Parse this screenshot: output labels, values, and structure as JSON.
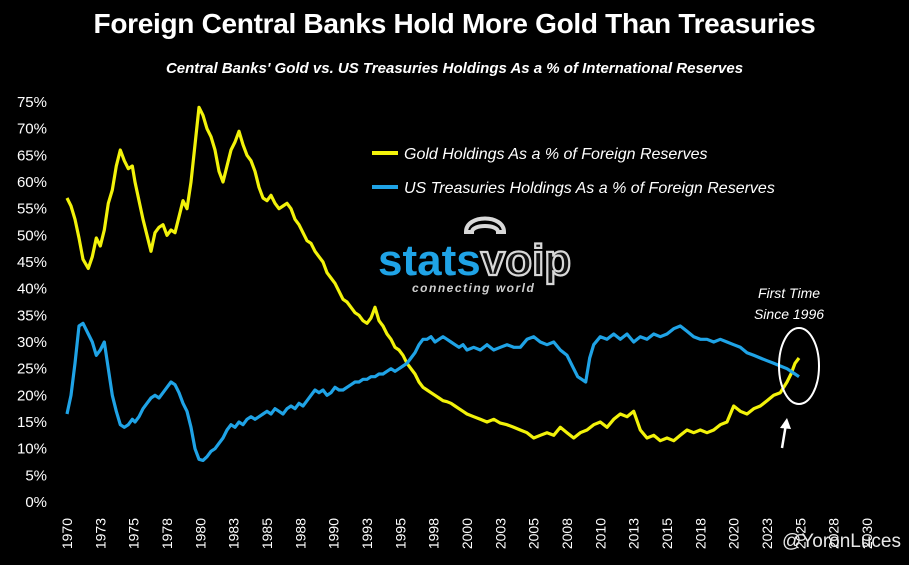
{
  "chart_data": {
    "type": "line",
    "title": "Foreign Central Banks Hold More Gold Than Treasuries",
    "subtitle": "Central Banks' Gold vs. US Treasuries Holdings As a % of International Reserves",
    "xlim": [
      1970,
      2030
    ],
    "ylim": [
      0,
      75
    ],
    "x_tick_labels": [
      "1970",
      "1973",
      "1975",
      "1978",
      "1980",
      "1983",
      "1985",
      "1988",
      "1990",
      "1993",
      "1995",
      "1998",
      "2000",
      "2003",
      "2005",
      "2008",
      "2010",
      "2013",
      "2015",
      "2018",
      "2020",
      "2023",
      "2025",
      "2028",
      "2030"
    ],
    "x_tick_values": [
      1970,
      1972.5,
      1975,
      1977.5,
      1980,
      1982.5,
      1985,
      1987.5,
      1990,
      1992.5,
      1995,
      1997.5,
      2000,
      2002.5,
      2005,
      2007.5,
      2010,
      2012.5,
      2015,
      2017.5,
      2020,
      2022.5,
      2025,
      2027.5,
      2030
    ],
    "y_tick_labels": [
      "0%",
      "5%",
      "10%",
      "15%",
      "20%",
      "25%",
      "30%",
      "35%",
      "40%",
      "45%",
      "50%",
      "55%",
      "60%",
      "65%",
      "70%",
      "75%"
    ],
    "y_tick_values": [
      0,
      5,
      10,
      15,
      20,
      25,
      30,
      35,
      40,
      45,
      50,
      55,
      60,
      65,
      70,
      75
    ],
    "grid": false,
    "legend_position": "top-right",
    "series": [
      {
        "name": "Gold Holdings As a % of Foreign Reserves",
        "color": "#f2f20a",
        "x": [
          1970.0,
          1970.3,
          1970.6,
          1970.9,
          1971.2,
          1971.6,
          1971.9,
          1972.2,
          1972.5,
          1972.8,
          1973.1,
          1973.4,
          1973.7,
          1974.0,
          1974.3,
          1974.6,
          1974.9,
          1975.1,
          1975.4,
          1975.7,
          1976.0,
          1976.3,
          1976.6,
          1976.9,
          1977.2,
          1977.5,
          1977.8,
          1978.1,
          1978.4,
          1978.7,
          1979.0,
          1979.3,
          1979.6,
          1979.9,
          1980.2,
          1980.5,
          1980.8,
          1981.1,
          1981.4,
          1981.7,
          1982.0,
          1982.3,
          1982.6,
          1982.9,
          1983.2,
          1983.5,
          1983.8,
          1984.1,
          1984.4,
          1984.7,
          1985.0,
          1985.3,
          1985.6,
          1985.9,
          1986.2,
          1986.5,
          1986.8,
          1987.1,
          1987.4,
          1987.7,
          1988.0,
          1988.3,
          1988.6,
          1988.9,
          1989.2,
          1989.5,
          1989.8,
          1990.1,
          1990.4,
          1990.7,
          1991.0,
          1991.3,
          1991.6,
          1991.9,
          1992.2,
          1992.5,
          1992.8,
          1993.1,
          1993.4,
          1993.7,
          1994.0,
          1994.3,
          1994.6,
          1994.9,
          1995.2,
          1995.5,
          1995.8,
          1996.1,
          1996.4,
          1996.7,
          1997.0,
          1997.3,
          1997.6,
          1997.9,
          1998.2,
          1998.5,
          1998.8,
          1999.1,
          1999.4,
          1999.7,
          2000.0,
          2000.5,
          2001.0,
          2001.5,
          2002.0,
          2002.5,
          2003.0,
          2003.5,
          2004.0,
          2004.5,
          2005.0,
          2005.5,
          2006.0,
          2006.5,
          2007.0,
          2007.5,
          2008.0,
          2008.5,
          2009.0,
          2009.5,
          2010.0,
          2010.5,
          2011.0,
          2011.5,
          2012.0,
          2012.5,
          2013.0,
          2013.5,
          2014.0,
          2014.5,
          2015.0,
          2015.5,
          2016.0,
          2016.5,
          2017.0,
          2017.5,
          2018.0,
          2018.5,
          2019.0,
          2019.5,
          2020.0,
          2020.5,
          2021.0,
          2021.5,
          2022.0,
          2022.5,
          2023.0,
          2023.5,
          2024.0,
          2024.3,
          2024.6,
          2024.9
        ],
        "y": [
          57.0,
          55.5,
          53.0,
          49.5,
          45.5,
          43.8,
          46.0,
          49.5,
          48.0,
          51.0,
          56.0,
          58.5,
          63.0,
          66.0,
          64.0,
          62.5,
          63.0,
          60.0,
          56.5,
          53.0,
          50.0,
          47.0,
          50.5,
          51.5,
          52.0,
          50.0,
          51.0,
          50.5,
          53.5,
          56.5,
          55.0,
          60.0,
          67.0,
          74.0,
          72.5,
          70.0,
          68.5,
          66.0,
          62.0,
          60.0,
          63.0,
          66.0,
          67.5,
          69.5,
          67.0,
          65.0,
          64.0,
          62.0,
          59.0,
          57.0,
          56.5,
          57.5,
          56.0,
          55.0,
          55.5,
          56.0,
          55.0,
          53.0,
          52.0,
          50.5,
          49.0,
          48.5,
          47.0,
          46.0,
          45.0,
          43.0,
          42.0,
          41.0,
          39.5,
          38.0,
          37.5,
          36.5,
          35.5,
          35.0,
          34.0,
          33.5,
          34.5,
          36.5,
          34.0,
          33.0,
          31.5,
          30.5,
          29.0,
          28.5,
          27.5,
          26.0,
          25.0,
          24.0,
          22.5,
          21.5,
          21.0,
          20.5,
          20.0,
          19.5,
          19.0,
          18.8,
          18.5,
          18.0,
          17.5,
          17.0,
          16.5,
          16.0,
          15.5,
          15.0,
          15.5,
          14.8,
          14.5,
          14.0,
          13.5,
          13.0,
          12.0,
          12.5,
          13.0,
          12.5,
          14.0,
          13.0,
          12.0,
          13.0,
          13.5,
          14.5,
          15.0,
          14.0,
          15.5,
          16.5,
          16.0,
          17.0,
          13.5,
          12.0,
          12.5,
          11.5,
          12.0,
          11.5,
          12.5,
          13.5,
          13.0,
          13.5,
          13.0,
          13.5,
          14.5,
          15.0,
          18.0,
          17.0,
          16.5,
          17.5,
          18.0,
          19.0,
          20.0,
          20.5,
          22.5,
          24.0,
          26.0,
          27.0
        ]
      },
      {
        "name": "US Treasuries Holdings As a % of Foreign Reserves",
        "color": "#1fa3e6",
        "x": [
          1970.0,
          1970.3,
          1970.6,
          1970.9,
          1971.2,
          1971.6,
          1971.9,
          1972.2,
          1972.5,
          1972.8,
          1973.1,
          1973.4,
          1973.7,
          1974.0,
          1974.3,
          1974.6,
          1974.9,
          1975.1,
          1975.4,
          1975.7,
          1976.0,
          1976.3,
          1976.6,
          1976.9,
          1977.2,
          1977.5,
          1977.8,
          1978.1,
          1978.4,
          1978.7,
          1979.0,
          1979.3,
          1979.6,
          1979.9,
          1980.2,
          1980.5,
          1980.8,
          1981.1,
          1981.4,
          1981.7,
          1982.0,
          1982.3,
          1982.6,
          1982.9,
          1983.2,
          1983.5,
          1983.8,
          1984.1,
          1984.4,
          1984.7,
          1985.0,
          1985.3,
          1985.6,
          1985.9,
          1986.2,
          1986.5,
          1986.8,
          1987.1,
          1987.4,
          1987.7,
          1988.0,
          1988.3,
          1988.6,
          1988.9,
          1989.2,
          1989.5,
          1989.8,
          1990.1,
          1990.4,
          1990.7,
          1991.0,
          1991.3,
          1991.6,
          1991.9,
          1992.2,
          1992.5,
          1992.8,
          1993.1,
          1993.4,
          1993.7,
          1994.0,
          1994.3,
          1994.6,
          1994.9,
          1995.2,
          1995.5,
          1995.8,
          1996.1,
          1996.4,
          1996.7,
          1997.0,
          1997.3,
          1997.6,
          1997.9,
          1998.2,
          1998.5,
          1998.8,
          1999.1,
          1999.4,
          1999.7,
          2000.0,
          2000.5,
          2001.0,
          2001.5,
          2002.0,
          2002.5,
          2003.0,
          2003.5,
          2004.0,
          2004.5,
          2005.0,
          2005.5,
          2006.0,
          2006.5,
          2007.0,
          2007.5,
          2008.0,
          2008.3,
          2008.6,
          2008.9,
          2009.2,
          2009.5,
          2010.0,
          2010.5,
          2011.0,
          2011.5,
          2012.0,
          2012.5,
          2013.0,
          2013.5,
          2014.0,
          2014.5,
          2015.0,
          2015.5,
          2016.0,
          2016.5,
          2017.0,
          2017.5,
          2018.0,
          2018.5,
          2019.0,
          2019.5,
          2020.0,
          2020.5,
          2021.0,
          2021.5,
          2022.0,
          2022.5,
          2023.0,
          2023.5,
          2024.0,
          2024.3,
          2024.6,
          2024.9
        ],
        "y": [
          16.5,
          20.0,
          26.0,
          33.0,
          33.5,
          31.5,
          30.0,
          27.5,
          28.5,
          30.0,
          25.0,
          20.0,
          17.0,
          14.5,
          14.0,
          14.5,
          15.5,
          15.0,
          16.0,
          17.5,
          18.5,
          19.5,
          20.0,
          19.5,
          20.5,
          21.5,
          22.5,
          22.0,
          20.5,
          18.5,
          17.0,
          14.0,
          10.0,
          8.0,
          7.8,
          8.5,
          9.5,
          10.0,
          11.0,
          12.0,
          13.5,
          14.5,
          14.0,
          15.0,
          14.5,
          15.5,
          16.0,
          15.5,
          16.0,
          16.5,
          17.0,
          16.5,
          17.5,
          17.0,
          16.5,
          17.5,
          18.0,
          17.5,
          18.5,
          18.0,
          19.0,
          20.0,
          21.0,
          20.5,
          21.0,
          20.0,
          20.5,
          21.5,
          21.0,
          21.0,
          21.5,
          22.0,
          22.5,
          22.5,
          23.0,
          23.0,
          23.5,
          23.5,
          24.0,
          24.0,
          24.5,
          25.0,
          24.5,
          25.0,
          25.5,
          26.0,
          27.0,
          28.0,
          29.5,
          30.5,
          30.5,
          31.0,
          30.0,
          30.5,
          31.0,
          30.5,
          30.0,
          29.5,
          29.0,
          29.5,
          28.5,
          29.0,
          28.5,
          29.5,
          28.5,
          29.0,
          29.5,
          29.0,
          29.0,
          30.5,
          31.0,
          30.0,
          29.5,
          30.0,
          28.5,
          27.5,
          25.0,
          23.5,
          23.0,
          22.5,
          27.0,
          29.5,
          31.0,
          30.5,
          31.5,
          30.5,
          31.5,
          30.0,
          31.0,
          30.5,
          31.5,
          31.0,
          31.5,
          32.5,
          33.0,
          32.0,
          31.0,
          30.5,
          30.5,
          30.0,
          30.5,
          30.0,
          29.5,
          29.0,
          28.0,
          27.5,
          27.0,
          26.5,
          26.0,
          25.5,
          25.0,
          24.5,
          24.0,
          23.5
        ]
      }
    ],
    "annotation": {
      "text_line1": "First Time",
      "text_line2": "Since 1996",
      "x": 2024.6,
      "y": 25.5
    },
    "watermark": {
      "brand_part1": "stats",
      "brand_part2": "voip",
      "tagline": "connecting world"
    },
    "credit": "@YoronLuces"
  }
}
